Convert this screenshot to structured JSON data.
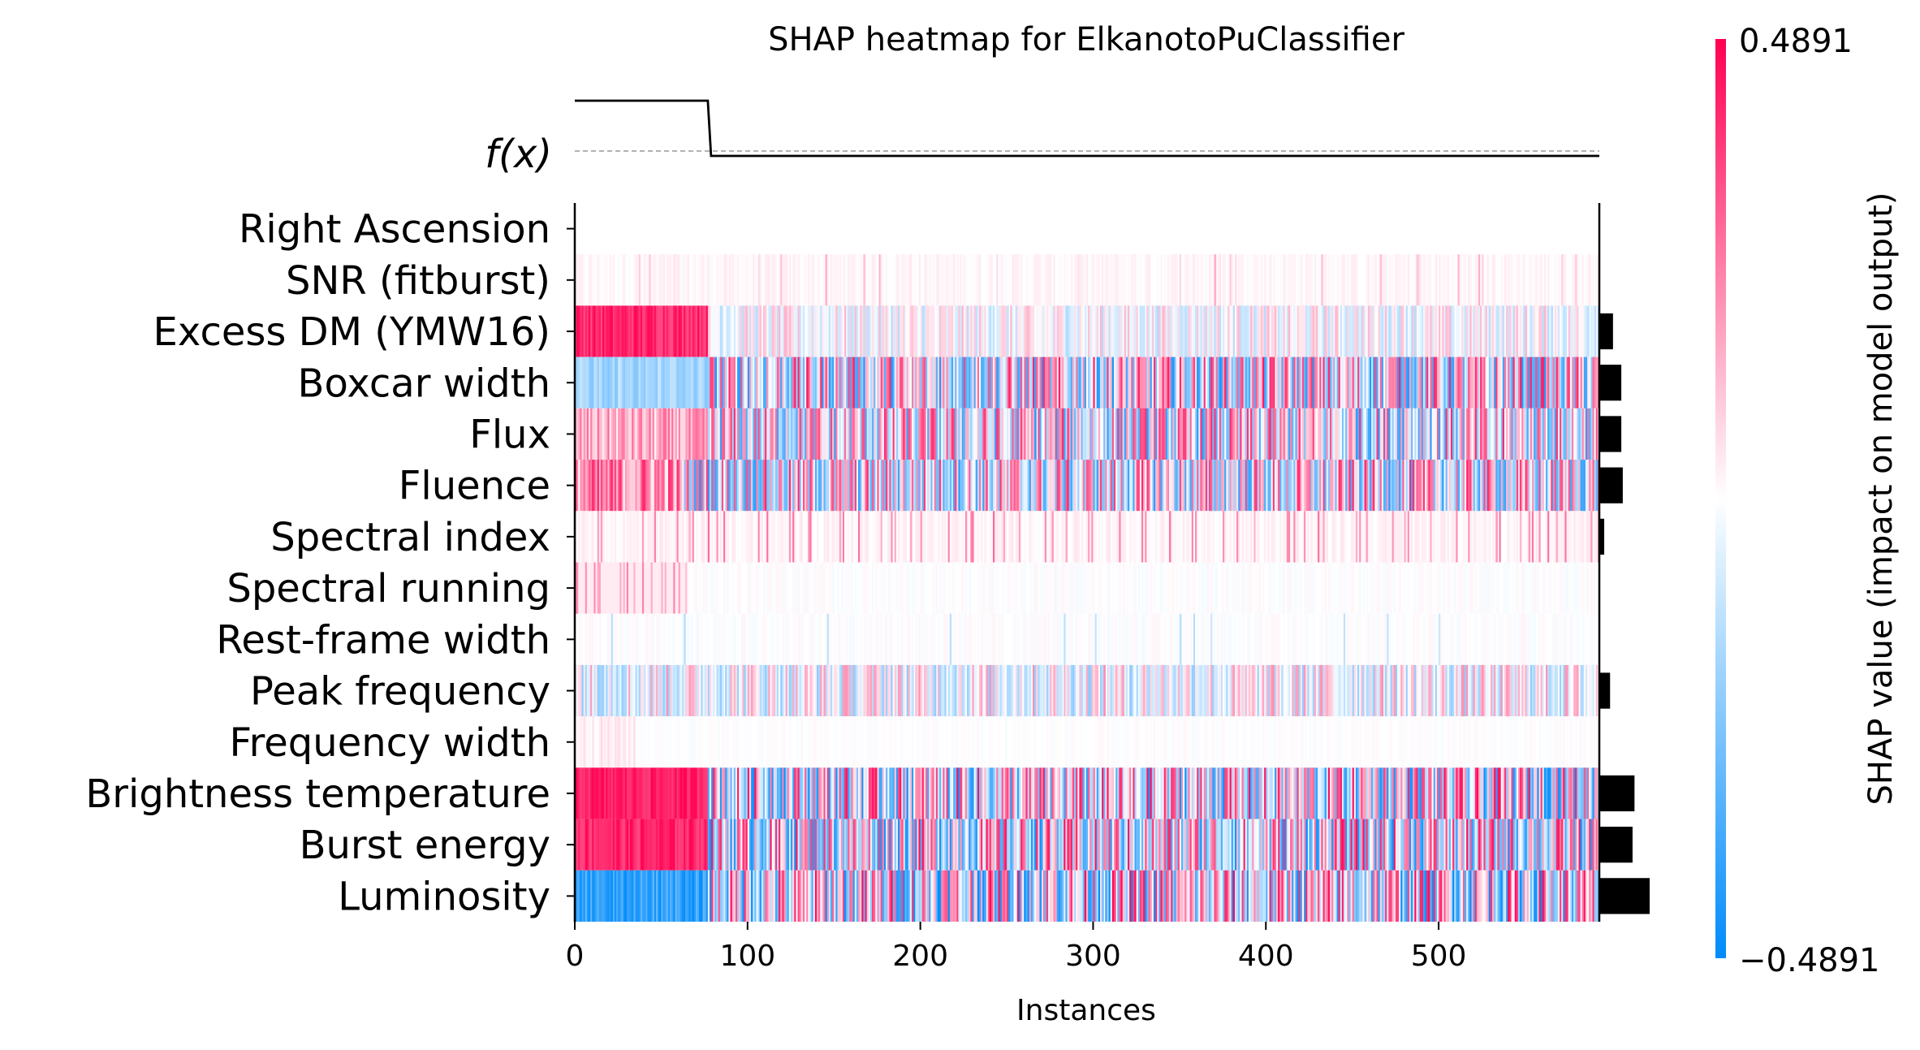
{
  "chart_data": {
    "type": "heatmap",
    "title": "SHAP heatmap for ElkanotoPuClassifier",
    "xlabel": "Instances",
    "xlim": [
      0,
      593
    ],
    "x_ticks": [
      0,
      100,
      200,
      300,
      400,
      500
    ],
    "x_tick_labels": [
      "0",
      "100",
      "200",
      "300",
      "400",
      "500"
    ],
    "fx_label": "f(x)",
    "n_instances": 593,
    "features": [
      "Right Ascension",
      "SNR (fitburst)",
      "Excess DM (YMW16)",
      "Boxcar width",
      "Flux",
      "Fluence",
      "Spectral index",
      "Spectral running",
      "Rest-frame width",
      "Peak frequency",
      "Frequency width",
      "Brightness temperature",
      "Burst energy",
      "Luminosity"
    ],
    "mean_abs_shap": [
      0.0,
      0.0,
      0.028,
      0.045,
      0.045,
      0.048,
      0.01,
      0.0,
      0.0,
      0.022,
      0.0,
      0.072,
      0.068,
      0.103
    ],
    "colorbar": {
      "label": "SHAP value (impact on model output)",
      "min": -0.4891,
      "max": 0.4891,
      "min_label": "−0.4891",
      "max_label": "0.4891",
      "low_color": "#008bfb",
      "mid_color": "#ffffff",
      "high_color": "#ff0052"
    },
    "fx_curve": {
      "high": 1.0,
      "low": 0.0,
      "step_at_instance": 77,
      "baseline": "dashed"
    },
    "row_patterns": [
      {
        "feature": "Right Ascension",
        "pattern": "blank"
      },
      {
        "feature": "SNR (fitburst)",
        "pattern": "very faint, mostly pink, few sparse spikes"
      },
      {
        "feature": "Excess DM (YMW16)",
        "pattern": "strong red for instances 0-77, then faint mixed"
      },
      {
        "feature": "Boxcar width",
        "pattern": "blue for 0-77, then strongly mixed"
      },
      {
        "feature": "Flux",
        "pattern": "pink then strongly mixed"
      },
      {
        "feature": "Fluence",
        "pattern": "red/pink first 60, then mixed"
      },
      {
        "feature": "Spectral index",
        "pattern": "faint pink"
      },
      {
        "feature": "Spectral running",
        "pattern": "faint pink for first 65, then near white"
      },
      {
        "feature": "Rest-frame width",
        "pattern": "near white"
      },
      {
        "feature": "Peak frequency",
        "pattern": "faint mixed"
      },
      {
        "feature": "Frequency width",
        "pattern": "near white"
      },
      {
        "feature": "Brightness temperature",
        "pattern": "strong red for 0-77, then strongly mixed"
      },
      {
        "feature": "Burst energy",
        "pattern": "strong red for 0-77, then strongly mixed"
      },
      {
        "feature": "Luminosity",
        "pattern": "strong blue for 0-77, then strongly mixed"
      }
    ]
  }
}
